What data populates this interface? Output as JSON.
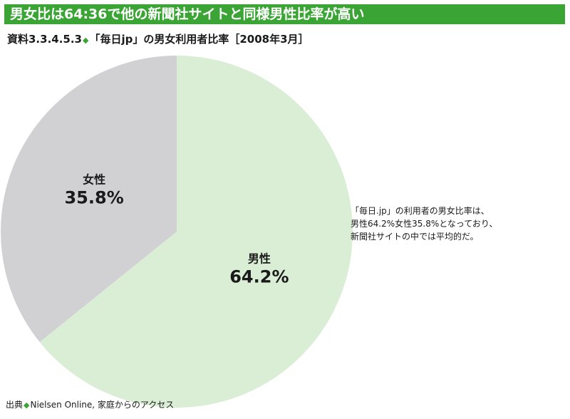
{
  "header": {
    "banner_title": "男女比は64:36で他の新聞社サイトと同様男性比率が高い",
    "figure_number": "資料3.3.4.5.3",
    "figure_title": "「毎日jp」の男女利用者比率［2008年3月］"
  },
  "chart_data": {
    "type": "pie",
    "title": "「毎日jp」の男女利用者比率［2008年3月］",
    "slices": [
      {
        "label": "男性",
        "value": 64.2,
        "display": "64.2%",
        "color": "#d9eed5"
      },
      {
        "label": "女性",
        "value": 35.8,
        "display": "35.8%",
        "color": "#d1d1d3"
      }
    ],
    "start": "12 o'clock",
    "direction": "clockwise"
  },
  "annotation": {
    "lines": [
      "「毎日.jp」の利用者の男女比率は、",
      "男性64.2%女性35.8%となっており、",
      "新聞社サイトの中では平均的だ。"
    ]
  },
  "footer": {
    "source_label": "出典",
    "source_text": "Nielsen Online, 家庭からのアクセス"
  }
}
